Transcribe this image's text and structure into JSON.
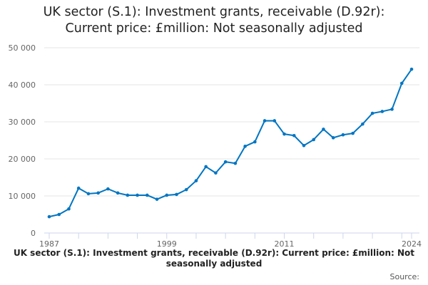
{
  "chart_data": {
    "type": "line",
    "title_lines": [
      "UK sector (S.1): Investment grants, receivable (D.92r):",
      "Current price: £million: Not seasonally adjusted"
    ],
    "xlabel": "",
    "ylabel": "",
    "ylim": [
      0,
      50000
    ],
    "yticks": [
      0,
      10000,
      20000,
      30000,
      40000,
      50000
    ],
    "ytick_labels": [
      "0",
      "10 000",
      "20 000",
      "30 000",
      "40 000",
      "50 000"
    ],
    "xtick_labels": [
      "1987",
      "1999",
      "2011",
      "2024"
    ],
    "grid": true,
    "legend_placement": "bottom",
    "color": "#0075c2",
    "series": [
      {
        "name": "UK sector (S.1): Investment grants, receivable (D.92r): Current price: £million: Not seasonally adjusted",
        "x": [
          1987,
          1988,
          1989,
          1990,
          1991,
          1992,
          1993,
          1994,
          1995,
          1996,
          1997,
          1998,
          1999,
          2000,
          2001,
          2002,
          2003,
          2004,
          2005,
          2006,
          2007,
          2008,
          2009,
          2010,
          2011,
          2012,
          2013,
          2014,
          2015,
          2016,
          2017,
          2018,
          2019,
          2020,
          2021,
          2022,
          2023,
          2024
        ],
        "values": [
          4400,
          5000,
          6500,
          12100,
          10600,
          10800,
          11900,
          10800,
          10200,
          10200,
          10200,
          9100,
          10200,
          10400,
          11700,
          14100,
          17900,
          16200,
          19200,
          18800,
          23400,
          24600,
          30300,
          30300,
          26700,
          26300,
          23600,
          25200,
          28000,
          25700,
          26500,
          26900,
          29400,
          32300,
          32800,
          33400,
          40400,
          44200
        ]
      }
    ],
    "source_label": "Source:"
  }
}
